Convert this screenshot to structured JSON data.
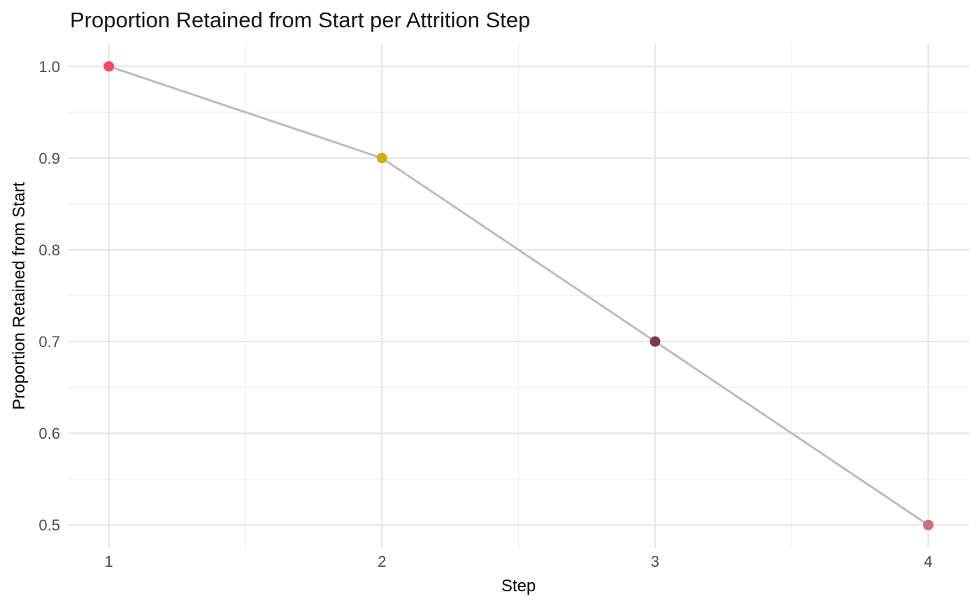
{
  "chart_data": {
    "type": "line",
    "title": "Proportion Retained from Start per Attrition Step",
    "xlabel": "Step",
    "ylabel": "Proportion Retained from Start",
    "x": [
      1,
      2,
      3,
      4
    ],
    "y": [
      1.0,
      0.9,
      0.7,
      0.5
    ],
    "point_colors": [
      "#FA4A62",
      "#CFB014",
      "#7C3B40",
      "#C7737B"
    ],
    "line_color": "#BCBCBC",
    "x_tick_labels": [
      "1",
      "2",
      "3",
      "4"
    ],
    "x_tick_values": [
      1,
      2,
      3,
      4
    ],
    "y_tick_labels": [
      "0.5",
      "0.6",
      "0.7",
      "0.8",
      "0.9",
      "1.0"
    ],
    "y_tick_values": [
      0.5,
      0.6,
      0.7,
      0.8,
      0.9,
      1.0
    ],
    "x_minor_gridlines": [
      1.5,
      2.5,
      3.5
    ],
    "y_minor_gridlines": [
      0.55,
      0.65,
      0.75,
      0.85,
      0.95
    ],
    "xlim": [
      0.85,
      4.15
    ],
    "ylim": [
      0.475,
      1.025
    ],
    "grid": "major-and-minor",
    "legend": "none",
    "colors": {
      "background": "#ffffff",
      "major_gridline": "#E6E6E6",
      "minor_gridline": "#F0F0F0",
      "tick_label": "#4d4d4d",
      "axis_title": "#000000",
      "chart_title": "#141414"
    }
  }
}
